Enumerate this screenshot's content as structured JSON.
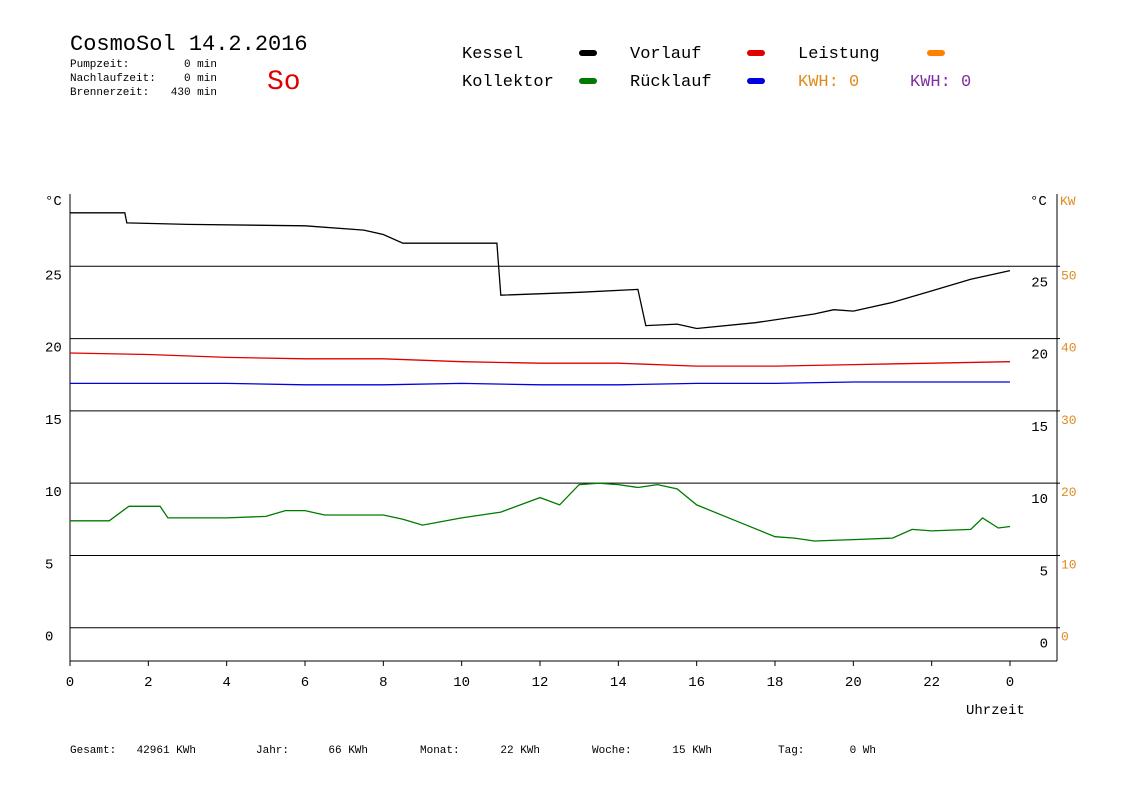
{
  "chart_data": {
    "type": "line",
    "title": "CosmoSol 14.2.2016",
    "day": "So",
    "info": [
      {
        "label": "Pumpzeit:",
        "value": "0 min"
      },
      {
        "label": "Nachlaufzeit:",
        "value": "0 min"
      },
      {
        "label": "Brennerzeit:",
        "value": "430 min"
      }
    ],
    "power_legend": {
      "name": "Leistung",
      "color": "#ff8000"
    },
    "kwh_labels": [
      {
        "text": "KWH: 0",
        "color": "#e08a1e"
      },
      {
        "text": "KWH: 0",
        "color": "#8030a0"
      }
    ],
    "y_unit": "°C",
    "y2_unit": "KW",
    "y2_color": "#e08a1e",
    "x_label": "Uhrzeit",
    "xlim": [
      0,
      25.2
    ],
    "xticks": [
      0,
      2,
      4,
      6,
      8,
      10,
      12,
      14,
      16,
      18,
      20,
      22,
      {
        "value": 24,
        "label": "0"
      }
    ],
    "ylim": [
      -2.3,
      30
    ],
    "yticks": [
      0,
      5,
      10,
      15,
      20,
      25
    ],
    "y2lim": [
      -4.6,
      60
    ],
    "y2ticks": [
      0,
      10,
      20,
      30,
      40,
      50
    ],
    "grid": true,
    "series": [
      {
        "name": "Kessel",
        "color": "#000000",
        "x": [
          0,
          1.4,
          1.45,
          3,
          6,
          7.5,
          8,
          8.5,
          10.9,
          11,
          13,
          14.5,
          14.7,
          15.5,
          16,
          17.5,
          19,
          19.5,
          20,
          21,
          22,
          23,
          24
        ],
        "values": [
          28.7,
          28.7,
          28.0,
          27.9,
          27.8,
          27.5,
          27.2,
          26.6,
          26.6,
          23.0,
          23.2,
          23.4,
          20.9,
          21.0,
          20.7,
          21.1,
          21.7,
          22.0,
          21.9,
          22.5,
          23.3,
          24.1,
          24.7
        ]
      },
      {
        "name": "Kollektor",
        "color": "#007a00",
        "x": [
          0,
          1,
          1.5,
          2.3,
          2.5,
          4,
          5,
          5.5,
          6,
          6.5,
          8,
          8.5,
          9,
          10,
          11,
          12,
          12.5,
          13,
          13.5,
          14,
          14.5,
          15,
          15.5,
          16,
          17,
          18,
          18.5,
          19,
          20,
          21,
          21.5,
          22,
          23,
          23.3,
          23.7,
          24
        ],
        "values": [
          7.4,
          7.4,
          8.4,
          8.4,
          7.6,
          7.6,
          7.7,
          8.1,
          8.1,
          7.8,
          7.8,
          7.5,
          7.1,
          7.6,
          8.0,
          9.0,
          8.5,
          9.9,
          10.0,
          9.9,
          9.7,
          9.9,
          9.6,
          8.5,
          7.4,
          6.3,
          6.2,
          6.0,
          6.1,
          6.2,
          6.8,
          6.7,
          6.8,
          7.6,
          6.9,
          7.0
        ]
      },
      {
        "name": "Vorlauf",
        "color": "#e00000",
        "x": [
          0,
          2,
          4,
          6,
          8,
          10,
          12,
          14,
          16,
          18,
          20,
          22,
          24
        ],
        "values": [
          19.0,
          18.9,
          18.7,
          18.6,
          18.6,
          18.4,
          18.3,
          18.3,
          18.1,
          18.1,
          18.2,
          18.3,
          18.4
        ]
      },
      {
        "name": "Rücklauf",
        "color": "#0000e0",
        "x": [
          0,
          2,
          4,
          6,
          8,
          10,
          12,
          14,
          16,
          18,
          20,
          22,
          24
        ],
        "values": [
          16.9,
          16.9,
          16.9,
          16.8,
          16.8,
          16.9,
          16.8,
          16.8,
          16.9,
          16.9,
          17.0,
          17.0,
          17.0
        ]
      }
    ],
    "totals": [
      {
        "label": "Gesamt:",
        "value": "42961 KWh"
      },
      {
        "label": "Jahr:",
        "value": "66 KWh"
      },
      {
        "label": "Monat:",
        "value": "22 KWh"
      },
      {
        "label": "Woche:",
        "value": "15 KWh"
      },
      {
        "label": "Tag:",
        "value": "0 Wh"
      }
    ]
  }
}
